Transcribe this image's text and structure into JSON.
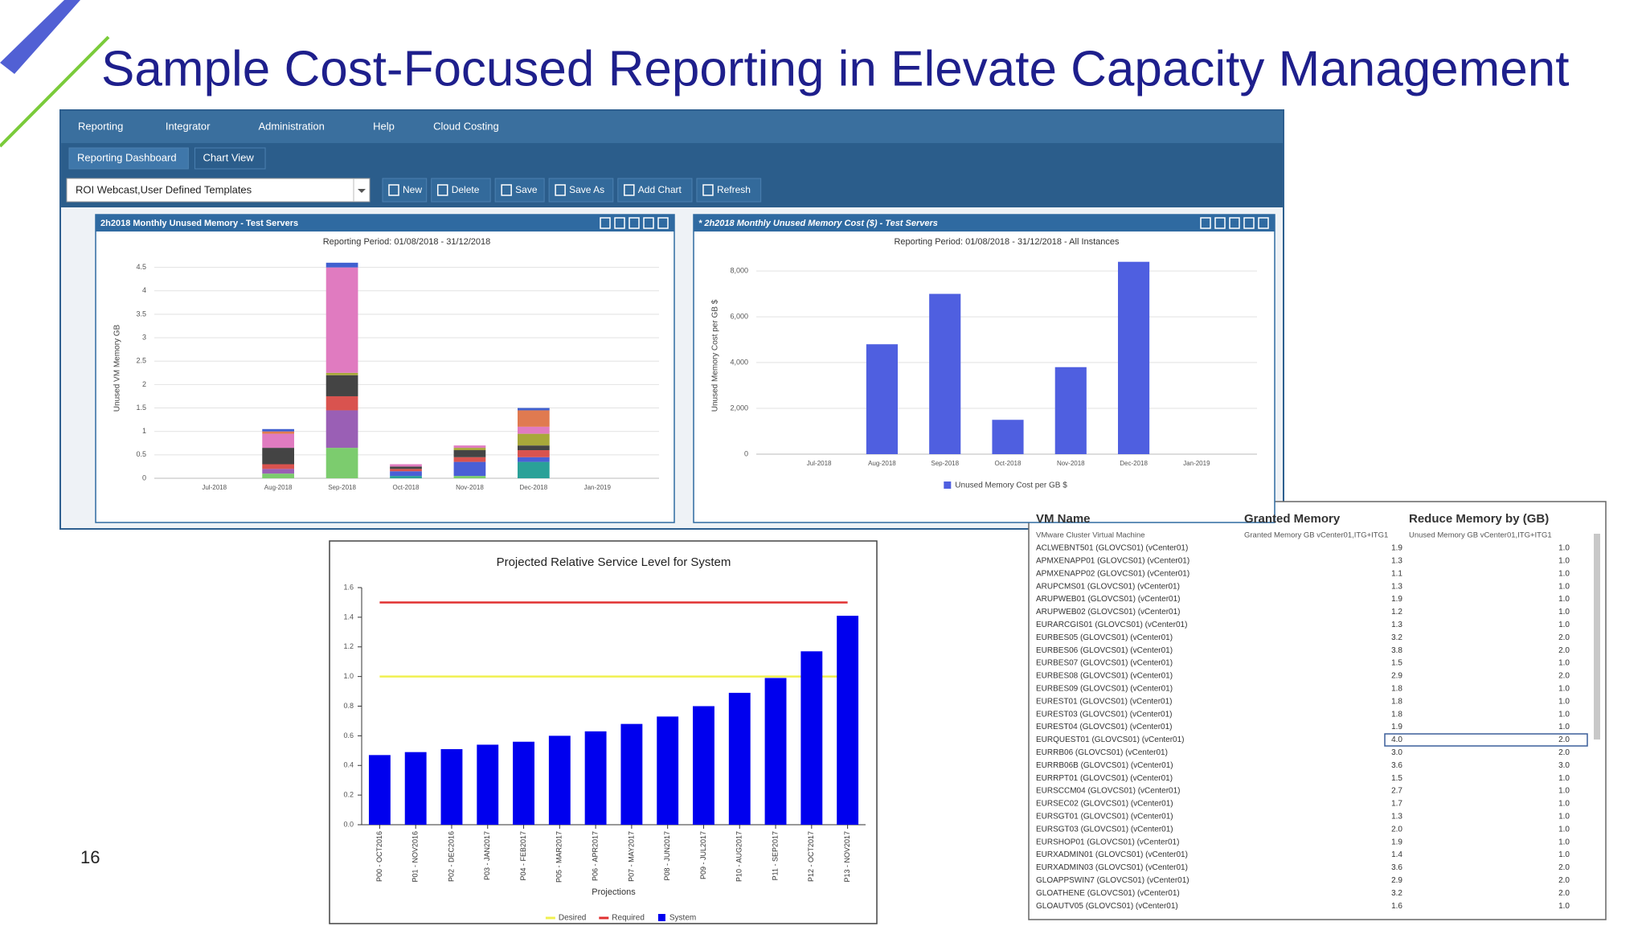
{
  "title": "Sample Cost-Focused Reporting in Elevate Capacity Management",
  "page_number": "16",
  "app": {
    "menu": [
      "Reporting",
      "Integrator",
      "Administration",
      "Help",
      "Cloud Costing"
    ],
    "submenu": [
      "Reporting Dashboard",
      "Chart View"
    ],
    "template": "ROI Webcast,User Defined Templates",
    "buttons": [
      "New",
      "Delete",
      "Save",
      "Save As",
      "Add Chart",
      "Refresh"
    ]
  },
  "chart_data": [
    {
      "type": "bar",
      "stacked": true,
      "title": "2h2018 Monthly Unused Memory - Test Servers",
      "subtitle": "Reporting Period: 01/08/2018 - 31/12/2018",
      "y_label": "Unused VM Memory GB",
      "categories": [
        "Jul-2018",
        "Aug-2018",
        "Sep-2018",
        "Oct-2018",
        "Nov-2018",
        "Dec-2018",
        "Jan-2019"
      ],
      "series": [
        {
          "color": "#7ccc6e",
          "values": [
            0,
            0.1,
            0.65,
            0,
            0.05,
            0,
            0
          ]
        },
        {
          "color": "#2aa198",
          "values": [
            0,
            0,
            0,
            0.05,
            0,
            0.35,
            0
          ]
        },
        {
          "color": "#4a5fd6",
          "values": [
            0,
            0,
            0,
            0.1,
            0.3,
            0.1,
            0
          ]
        },
        {
          "color": "#9a5fb5",
          "values": [
            0,
            0.1,
            0.8,
            0,
            0,
            0,
            0
          ]
        },
        {
          "color": "#d9534f",
          "values": [
            0,
            0.1,
            0.3,
            0.05,
            0.1,
            0.15,
            0
          ]
        },
        {
          "color": "#444444",
          "values": [
            0,
            0.35,
            0.45,
            0.05,
            0.15,
            0.1,
            0
          ]
        },
        {
          "color": "#a8a83a",
          "values": [
            0,
            0,
            0.05,
            0,
            0.05,
            0.25,
            0
          ]
        },
        {
          "color": "#e07bc0",
          "values": [
            0,
            0.3,
            2.25,
            0.05,
            0.05,
            0.15,
            0
          ]
        },
        {
          "color": "#e07a50",
          "values": [
            0,
            0.05,
            0,
            0,
            0,
            0.35,
            0
          ]
        },
        {
          "color": "#4060d0",
          "values": [
            0,
            0.05,
            0.1,
            0,
            0,
            0.05,
            0
          ]
        }
      ],
      "ylim": [
        0,
        4.7
      ],
      "yticks": [
        0,
        0.5,
        1,
        1.5,
        2,
        2.5,
        3,
        3.5,
        4,
        4.5
      ],
      "grid": true
    },
    {
      "type": "bar",
      "title": "* 2h2018 Monthly Unused Memory Cost ($) - Test Servers",
      "subtitle": "Reporting Period: 01/08/2018 - 31/12/2018 - All Instances",
      "y_label": "Unused Memory Cost per GB $",
      "categories": [
        "Jul-2018",
        "Aug-2018",
        "Sep-2018",
        "Oct-2018",
        "Nov-2018",
        "Dec-2018",
        "Jan-2019"
      ],
      "series": [
        {
          "name": "Unused Memory Cost per GB $",
          "color": "#4f5fe0",
          "values": [
            null,
            4800,
            7000,
            1500,
            3800,
            8400,
            null
          ]
        }
      ],
      "ylim": [
        0,
        8600
      ],
      "yticks": [
        0,
        {
          "value": 2000,
          "label": "2,000"
        },
        {
          "value": 4000,
          "label": "4,000"
        },
        {
          "value": 6000,
          "label": "6,000"
        },
        {
          "value": 8000,
          "label": "8,000"
        }
      ],
      "grid": true,
      "legend": "bottom"
    },
    {
      "type": "bar",
      "title": "Projected Relative Service Level for System",
      "x_label": "Projections",
      "categories": [
        "P00 - OCT2016",
        "P01 - NOV2016",
        "P02 - DEC2016",
        "P03 - JAN2017",
        "P04 - FEB2017",
        "P05 - MAR2017",
        "P06 - APR2017",
        "P07 - MAY2017",
        "P08 - JUN2017",
        "P09 - JUL2017",
        "P10 - AUG2017",
        "P11 - SEP2017",
        "P12 - OCT2017",
        "P13 - NOV2017"
      ],
      "series": [
        {
          "name": "Desired",
          "type": "line",
          "color": "#f0f050",
          "values": [
            1.0,
            1.0,
            1.0,
            1.0,
            1.0,
            1.0,
            1.0,
            1.0,
            1.0,
            1.0,
            1.0,
            1.0,
            1.0,
            1.0
          ]
        },
        {
          "name": "Required",
          "type": "line",
          "color": "#e03030",
          "values": [
            1.5,
            1.5,
            1.5,
            1.5,
            1.5,
            1.5,
            1.5,
            1.5,
            1.5,
            1.5,
            1.5,
            1.5,
            1.5,
            1.5
          ]
        },
        {
          "name": "System",
          "color": "#0000ee",
          "values": [
            0.47,
            0.49,
            0.51,
            0.54,
            0.56,
            0.6,
            0.63,
            0.68,
            0.73,
            0.8,
            0.89,
            0.99,
            1.17,
            1.41
          ]
        }
      ],
      "ylim": [
        0,
        1.6
      ],
      "yticks": [
        {
          "value": 0,
          "label": "0.0"
        },
        0.2,
        0.4,
        0.6,
        0.8,
        {
          "value": 1,
          "label": "1.0"
        },
        1.2,
        1.4,
        1.6
      ],
      "grid": false,
      "legend": "bottom"
    }
  ],
  "table": {
    "columns": [
      "VM Name",
      "Granted Memory",
      "Reduce Memory by (GB)"
    ],
    "subheader": [
      "VMware Cluster Virtual Machine",
      "Granted Memory GB vCenter01,ITG+ITG1",
      "Unused Memory GB vCenter01,ITG+ITG1"
    ],
    "rows": [
      [
        "ACLWEBNT501 (GLOVCS01) (vCenter01)",
        "1.9",
        "1.0"
      ],
      [
        "APMXENAPP01 (GLOVCS01) (vCenter01)",
        "1.3",
        "1.0"
      ],
      [
        "APMXENAPP02 (GLOVCS01) (vCenter01)",
        "1.1",
        "1.0"
      ],
      [
        "ARUPCMS01 (GLOVCS01) (vCenter01)",
        "1.3",
        "1.0"
      ],
      [
        "ARUPWEB01 (GLOVCS01) (vCenter01)",
        "1.9",
        "1.0"
      ],
      [
        "ARUPWEB02 (GLOVCS01) (vCenter01)",
        "1.2",
        "1.0"
      ],
      [
        "EURARCGIS01 (GLOVCS01) (vCenter01)",
        "1.3",
        "1.0"
      ],
      [
        "EURBES05 (GLOVCS01) (vCenter01)",
        "3.2",
        "2.0"
      ],
      [
        "EURBES06 (GLOVCS01) (vCenter01)",
        "3.8",
        "2.0"
      ],
      [
        "EURBES07 (GLOVCS01) (vCenter01)",
        "1.5",
        "1.0"
      ],
      [
        "EURBES08 (GLOVCS01) (vCenter01)",
        "2.9",
        "2.0"
      ],
      [
        "EURBES09 (GLOVCS01) (vCenter01)",
        "1.8",
        "1.0"
      ],
      [
        "EUREST01 (GLOVCS01) (vCenter01)",
        "1.8",
        "1.0"
      ],
      [
        "EUREST03 (GLOVCS01) (vCenter01)",
        "1.8",
        "1.0"
      ],
      [
        "EUREST04 (GLOVCS01) (vCenter01)",
        "1.9",
        "1.0"
      ],
      [
        "EURQUEST01 (GLOVCS01) (vCenter01)",
        "4.0",
        "2.0"
      ],
      [
        "EURRB06 (GLOVCS01) (vCenter01)",
        "3.0",
        "2.0"
      ],
      [
        "EURRB06B (GLOVCS01) (vCenter01)",
        "3.6",
        "3.0"
      ],
      [
        "EURRPT01 (GLOVCS01) (vCenter01)",
        "1.5",
        "1.0"
      ],
      [
        "EURSCCM04 (GLOVCS01) (vCenter01)",
        "2.7",
        "1.0"
      ],
      [
        "EURSEC02 (GLOVCS01) (vCenter01)",
        "1.7",
        "1.0"
      ],
      [
        "EURSGT01 (GLOVCS01) (vCenter01)",
        "1.3",
        "1.0"
      ],
      [
        "EURSGT03 (GLOVCS01) (vCenter01)",
        "2.0",
        "1.0"
      ],
      [
        "EURSHOP01 (GLOVCS01) (vCenter01)",
        "1.9",
        "1.0"
      ],
      [
        "EURXADMIN01 (GLOVCS01) (vCenter01)",
        "1.4",
        "1.0"
      ],
      [
        "EURXADMIN03 (GLOVCS01) (vCenter01)",
        "3.6",
        "2.0"
      ],
      [
        "GLOAPPSWIN7 (GLOVCS01) (vCenter01)",
        "2.9",
        "2.0"
      ],
      [
        "GLOATHENE (GLOVCS01) (vCenter01)",
        "3.2",
        "2.0"
      ],
      [
        "GLOAUTV05 (GLOVCS01) (vCenter01)",
        "1.6",
        "1.0"
      ]
    ]
  }
}
